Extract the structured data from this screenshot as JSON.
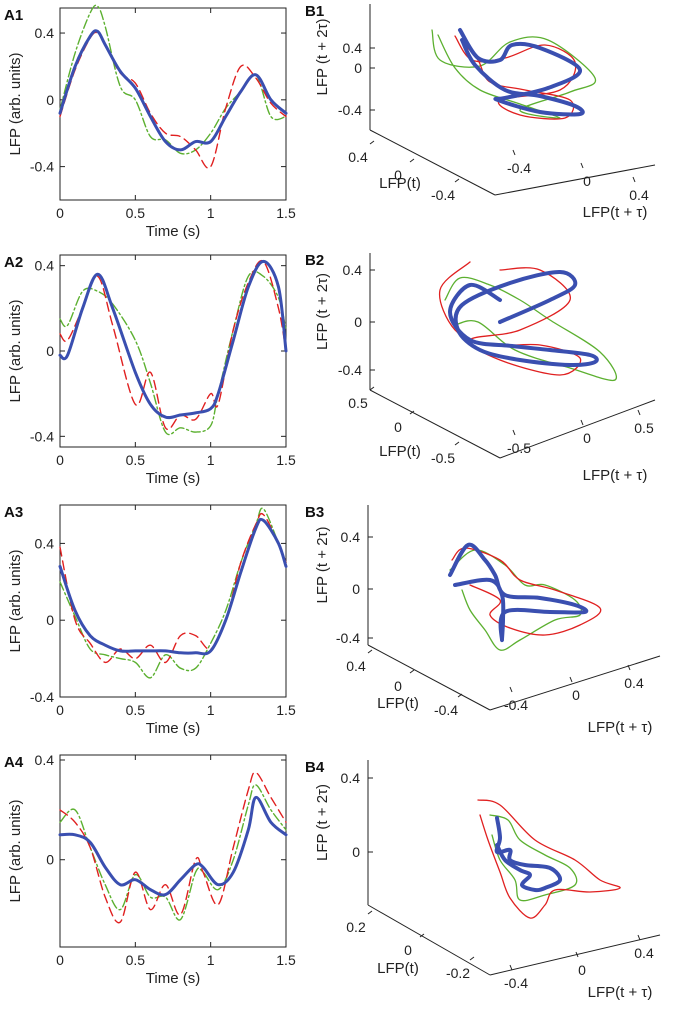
{
  "figure": {
    "colors": {
      "blue": "#3a4fb0",
      "red": "#e02020",
      "green": "#5cb030",
      "axis": "#222222"
    },
    "series_names": [
      "blue solid (thick)",
      "red dashed",
      "green dash-dot"
    ]
  },
  "chart_data": [
    {
      "id": "A1",
      "type": "line",
      "panel_label": "A1",
      "xlabel": "Time (s)",
      "ylabel": "LFP (arb. units)",
      "xlim": [
        0,
        1.5
      ],
      "ylim": [
        -0.6,
        0.55
      ],
      "xticks": [
        {
          "v": 0,
          "label": "0"
        },
        {
          "v": 0.5,
          "label": "0.5"
        },
        {
          "v": 1,
          "label": "1"
        },
        {
          "v": 1.5,
          "label": "1.5"
        }
      ],
      "yticks": [
        {
          "v": -0.4,
          "label": "-0.4"
        },
        {
          "v": 0,
          "label": "0"
        },
        {
          "v": 0.4,
          "label": "0.4"
        }
      ],
      "x": [
        0,
        0.1,
        0.2,
        0.25,
        0.3,
        0.4,
        0.5,
        0.6,
        0.7,
        0.8,
        0.9,
        1.0,
        1.1,
        1.2,
        1.3,
        1.4,
        1.5
      ],
      "series": [
        {
          "name": "blue",
          "values": [
            -0.08,
            0.2,
            0.38,
            0.41,
            0.33,
            0.17,
            0.07,
            -0.1,
            -0.25,
            -0.3,
            -0.25,
            -0.25,
            -0.1,
            0.05,
            0.15,
            0.0,
            -0.08
          ]
        },
        {
          "name": "red",
          "values": [
            -0.1,
            0.18,
            0.37,
            0.4,
            0.33,
            0.16,
            0.1,
            -0.08,
            -0.2,
            -0.22,
            -0.3,
            -0.4,
            -0.05,
            0.2,
            0.13,
            -0.02,
            -0.1
          ]
        },
        {
          "name": "green",
          "values": [
            -0.06,
            0.28,
            0.52,
            0.56,
            0.44,
            0.08,
            0.0,
            -0.22,
            -0.24,
            -0.32,
            -0.3,
            -0.2,
            -0.05,
            0.05,
            0.15,
            -0.1,
            -0.1
          ]
        }
      ]
    },
    {
      "id": "A2",
      "type": "line",
      "panel_label": "A2",
      "xlabel": "Time (s)",
      "ylabel": "LFP (arb. units)",
      "xlim": [
        0,
        1.5
      ],
      "ylim": [
        -0.45,
        0.45
      ],
      "xticks": [
        {
          "v": 0,
          "label": "0"
        },
        {
          "v": 0.5,
          "label": "0.5"
        },
        {
          "v": 1,
          "label": "1"
        },
        {
          "v": 1.5,
          "label": "1.5"
        }
      ],
      "yticks": [
        {
          "v": -0.4,
          "label": "-0.4"
        },
        {
          "v": 0,
          "label": "0"
        },
        {
          "v": 0.4,
          "label": "0.4"
        }
      ],
      "x": [
        0,
        0.05,
        0.15,
        0.25,
        0.35,
        0.5,
        0.6,
        0.7,
        0.8,
        0.9,
        1.0,
        1.05,
        1.15,
        1.25,
        1.35,
        1.45,
        1.5
      ],
      "series": [
        {
          "name": "blue",
          "values": [
            -0.02,
            -0.02,
            0.2,
            0.36,
            0.2,
            -0.1,
            -0.25,
            -0.31,
            -0.3,
            -0.29,
            -0.27,
            -0.2,
            0.05,
            0.3,
            0.42,
            0.3,
            0.0
          ]
        },
        {
          "name": "red",
          "values": [
            0.08,
            0.05,
            0.2,
            0.35,
            0.12,
            -0.25,
            -0.1,
            -0.36,
            -0.3,
            -0.32,
            -0.2,
            -0.25,
            0.1,
            0.32,
            0.42,
            0.2,
            0.0
          ]
        },
        {
          "name": "green",
          "values": [
            0.15,
            0.12,
            0.28,
            0.28,
            0.22,
            0.05,
            -0.15,
            -0.38,
            -0.36,
            -0.38,
            -0.35,
            -0.2,
            0.1,
            0.35,
            0.35,
            0.25,
            0.1
          ]
        }
      ]
    },
    {
      "id": "A3",
      "type": "line",
      "panel_label": "A3",
      "xlabel": "Time (s)",
      "ylabel": "LFP (arb. units)",
      "xlim": [
        0,
        1.5
      ],
      "ylim": [
        -0.4,
        0.6
      ],
      "xticks": [
        {
          "v": 0,
          "label": "0"
        },
        {
          "v": 0.5,
          "label": "0.5"
        },
        {
          "v": 1,
          "label": "1"
        },
        {
          "v": 1.5,
          "label": "1.5"
        }
      ],
      "yticks": [
        {
          "v": -0.4,
          "label": "-0.4"
        },
        {
          "v": 0,
          "label": "0"
        },
        {
          "v": 0.4,
          "label": "0.4"
        }
      ],
      "x": [
        0,
        0.1,
        0.2,
        0.3,
        0.4,
        0.5,
        0.6,
        0.7,
        0.8,
        0.9,
        1.0,
        1.1,
        1.2,
        1.3,
        1.35,
        1.45,
        1.5
      ],
      "series": [
        {
          "name": "blue",
          "values": [
            0.28,
            0.05,
            -0.08,
            -0.13,
            -0.16,
            -0.16,
            -0.16,
            -0.16,
            -0.17,
            -0.17,
            -0.16,
            0.0,
            0.25,
            0.48,
            0.52,
            0.4,
            0.28
          ]
        },
        {
          "name": "red",
          "values": [
            0.38,
            0.0,
            -0.12,
            -0.22,
            -0.15,
            -0.2,
            -0.13,
            -0.22,
            -0.08,
            -0.08,
            -0.15,
            0.0,
            0.3,
            0.5,
            0.55,
            0.4,
            0.3
          ]
        },
        {
          "name": "green",
          "values": [
            0.2,
            0.02,
            -0.15,
            -0.18,
            -0.2,
            -0.22,
            -0.3,
            -0.18,
            -0.25,
            -0.25,
            -0.12,
            0.05,
            0.3,
            0.5,
            0.58,
            0.4,
            0.3
          ]
        }
      ]
    },
    {
      "id": "A4",
      "type": "line",
      "panel_label": "A4",
      "xlabel": "Time (s)",
      "ylabel": "LFP (arb. units)",
      "xlim": [
        0,
        1.5
      ],
      "ylim": [
        -0.35,
        0.42
      ],
      "xticks": [
        {
          "v": 0,
          "label": "0"
        },
        {
          "v": 0.5,
          "label": "0.5"
        },
        {
          "v": 1,
          "label": "1"
        },
        {
          "v": 1.5,
          "label": "1.5"
        }
      ],
      "yticks": [
        {
          "v": 0,
          "label": "0"
        },
        {
          "v": 0.4,
          "label": "0.4"
        }
      ],
      "x": [
        0,
        0.1,
        0.2,
        0.3,
        0.4,
        0.5,
        0.6,
        0.7,
        0.8,
        0.9,
        0.95,
        1.05,
        1.15,
        1.25,
        1.3,
        1.4,
        1.5
      ],
      "series": [
        {
          "name": "blue",
          "values": [
            0.1,
            0.1,
            0.07,
            -0.03,
            -0.1,
            -0.08,
            -0.12,
            -0.14,
            -0.08,
            -0.02,
            -0.03,
            -0.1,
            -0.05,
            0.12,
            0.25,
            0.15,
            0.1
          ]
        },
        {
          "name": "red",
          "values": [
            0.2,
            0.15,
            0.05,
            -0.15,
            -0.25,
            -0.05,
            -0.2,
            -0.1,
            -0.22,
            0.0,
            -0.05,
            -0.18,
            0.05,
            0.28,
            0.35,
            0.25,
            0.15
          ]
        },
        {
          "name": "green",
          "values": [
            0.15,
            0.2,
            0.05,
            -0.1,
            -0.2,
            -0.06,
            -0.15,
            -0.15,
            -0.24,
            -0.05,
            -0.05,
            -0.12,
            0.0,
            0.22,
            0.3,
            0.2,
            0.12
          ]
        }
      ]
    }
  ],
  "phase_panels": [
    {
      "id": "B1",
      "panel_label": "B1",
      "zlabel": "LFP (t + 2τ)",
      "xlabel": "LFP(t)",
      "ylabel": "LFP(t + τ)",
      "zticks": [
        "0.4",
        "0",
        "-0.4"
      ],
      "xticks": [
        "0.4",
        "0",
        "-0.4"
      ],
      "yticks": [
        "0.4",
        "0",
        "-0.4"
      ]
    },
    {
      "id": "B2",
      "panel_label": "B2",
      "zlabel": "LFP (t + 2τ)",
      "xlabel": "LFP(t)",
      "ylabel": "LFP(t + τ)",
      "zticks": [
        "0.4",
        "0",
        "-0.4"
      ],
      "xticks": [
        "0.5",
        "0",
        "-0.5"
      ],
      "yticks": [
        "0.5",
        "0",
        "-0.5"
      ]
    },
    {
      "id": "B3",
      "panel_label": "B3",
      "zlabel": "LFP (t + 2τ)",
      "xlabel": "LFP(t)",
      "ylabel": "LFP(t + τ)",
      "zticks": [
        "0.4",
        "0",
        "-0.4"
      ],
      "xticks": [
        "0.4",
        "0",
        "-0.4"
      ],
      "yticks": [
        "0.4",
        "0",
        "-0.4"
      ]
    },
    {
      "id": "B4",
      "panel_label": "B4",
      "zlabel": "LFP (t + 2τ)",
      "xlabel": "LFP(t)",
      "ylabel": "LFP(t + τ)",
      "zticks": [
        "0.4",
        "0"
      ],
      "xticks": [
        "0.2",
        "0",
        "-0.2"
      ],
      "yticks": [
        "0.4",
        "0",
        "-0.4"
      ]
    }
  ]
}
